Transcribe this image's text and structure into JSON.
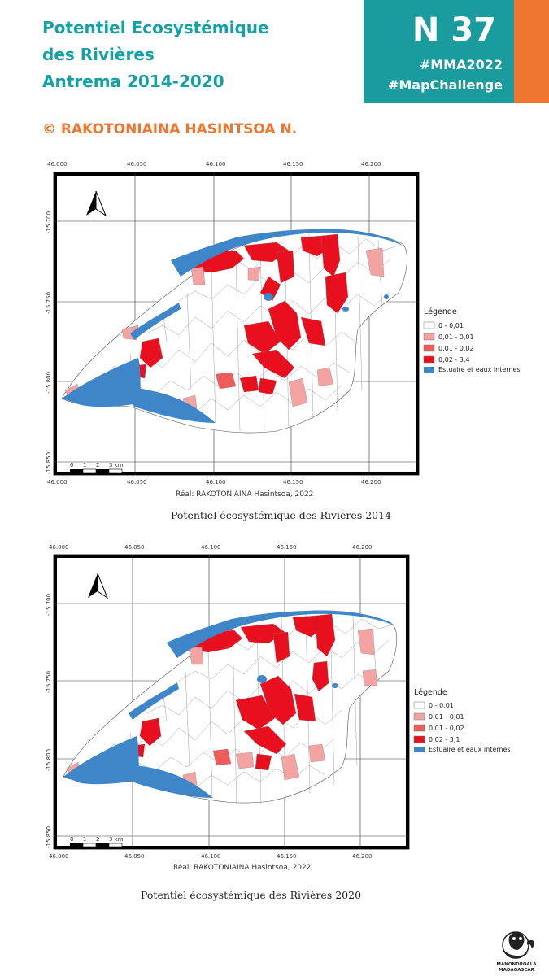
{
  "header": {
    "title_lines": [
      "Potentiel Ecosystémique",
      "des Rivières",
      "Antrema 2014-2020"
    ],
    "credit": "© RAKOTONIAINA HASINTSOA N.",
    "badge_number": "N 37",
    "hashtag_1": "#MMA2022",
    "hashtag_2": "#MapChallenge",
    "teal": "#1a9b9d",
    "orange": "#ee7630"
  },
  "maps": [
    {
      "x_ticks": [
        "46.000",
        "46.050",
        "46.100",
        "46.150",
        "46.200"
      ],
      "y_ticks": [
        "-15.700",
        "-15.750",
        "-15.800",
        "-15.850"
      ],
      "north_arrow": "north-arrow-icon",
      "scale_labels": [
        "0",
        "1",
        "2",
        "3 km"
      ],
      "legend_title": "Légende",
      "legend": [
        {
          "label": "0 - 0,01",
          "color": "#ffffff"
        },
        {
          "label": "0,01 - 0,01",
          "color": "#f4a3a3"
        },
        {
          "label": "0,01 - 0,02",
          "color": "#ee5b5b"
        },
        {
          "label": "0,02 - 3,4",
          "color": "#e8101e"
        },
        {
          "label": "Estuaire et eaux internes",
          "color": "#3f86c9"
        }
      ],
      "realisation": "Réal: RAKOTONIAINA Hasintsoa, 2022",
      "caption": "Potentiel écosystémique des Rivières 2014"
    },
    {
      "x_ticks": [
        "46.000",
        "46.050",
        "46.100",
        "46.150",
        "46.200"
      ],
      "y_ticks": [
        "-15.700",
        "-15.750",
        "-15.800",
        "-15.850"
      ],
      "north_arrow": "north-arrow-icon",
      "scale_labels": [
        "0",
        "1",
        "2",
        "3 km"
      ],
      "legend_title": "Légende",
      "legend": [
        {
          "label": "0 - 0,01",
          "color": "#ffffff"
        },
        {
          "label": "0,01 - 0,01",
          "color": "#f4a3a3"
        },
        {
          "label": "0,01 - 0,02",
          "color": "#ee5b5b"
        },
        {
          "label": "0,02 - 3,1",
          "color": "#e8101e"
        },
        {
          "label": "Estuaire et eaux internes",
          "color": "#3f86c9"
        }
      ],
      "realisation": "Réal: RAKOTONIAINA Hasintsoa, 2022",
      "caption": "Potentiel écosystémique des Rivières 2020"
    }
  ],
  "logo": {
    "line1": "MANONDROALA",
    "line2": "MADAGASCAR",
    "icon": "lemur-logo-icon"
  }
}
